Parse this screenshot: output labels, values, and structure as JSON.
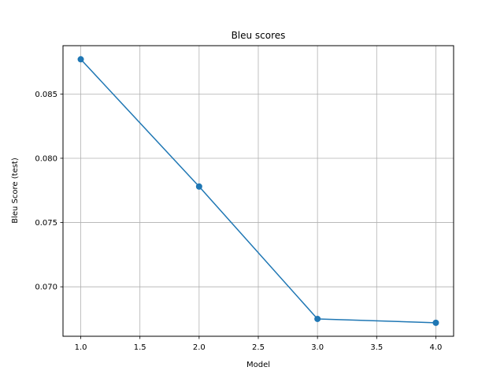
{
  "chart_data": {
    "type": "line",
    "title": "Bleu scores",
    "xlabel": "Model",
    "ylabel": "Bleu Score (test)",
    "xlim": [
      0.85,
      4.15
    ],
    "ylim": [
      0.06615,
      0.08876
    ],
    "xticks": [
      1.0,
      1.5,
      2.0,
      2.5,
      3.0,
      3.5,
      4.0
    ],
    "xtick_labels": [
      "1.0",
      "1.5",
      "2.0",
      "2.5",
      "3.0",
      "3.5",
      "4.0"
    ],
    "yticks": [
      0.07,
      0.075,
      0.08,
      0.085
    ],
    "ytick_labels": [
      "0.070",
      "0.075",
      "0.080",
      "0.085"
    ],
    "grid": true,
    "series": [
      {
        "x": [
          1,
          2,
          3,
          4
        ],
        "y": [
          0.0877,
          0.0778,
          0.0675,
          0.0672
        ],
        "color": "#1f77b4",
        "marker": "circle"
      }
    ]
  }
}
